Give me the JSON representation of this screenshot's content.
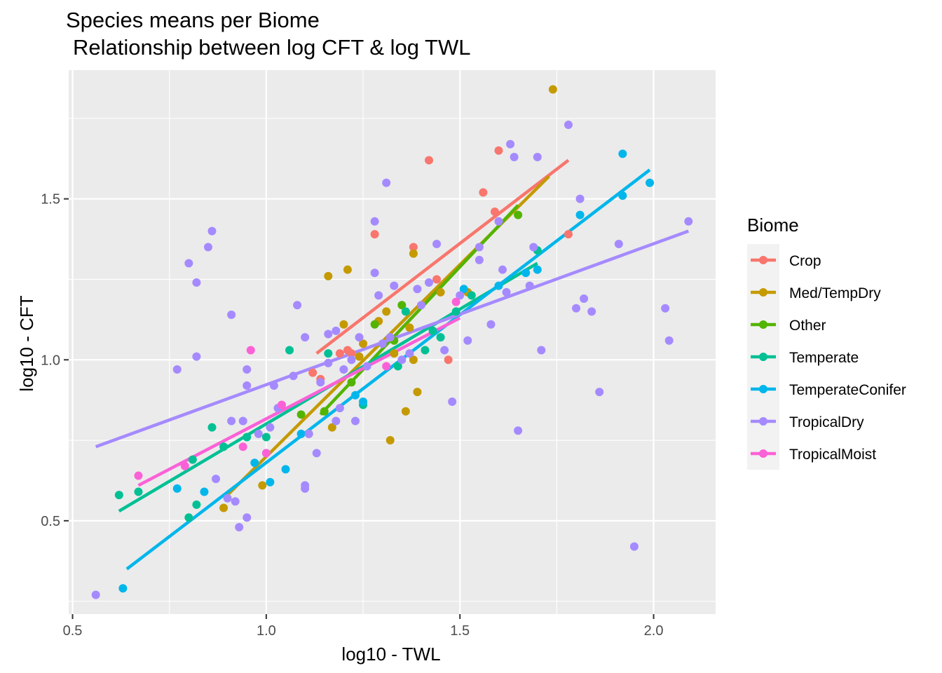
{
  "chart_data": {
    "type": "scatter",
    "title": "Species means per Biome",
    "subtitle": "Relationship between log CFT & log TWL",
    "xlabel": "log10 - TWL",
    "ylabel": "log10 - CFT",
    "xlim": [
      0.49,
      2.16
    ],
    "ylim": [
      0.21,
      1.9
    ],
    "x_ticks": [
      {
        "value": 0.5,
        "label": "0.5"
      },
      {
        "value": 1.0,
        "label": "1.0"
      },
      {
        "value": 1.5,
        "label": "1.5"
      },
      {
        "value": 2.0,
        "label": "2.0"
      }
    ],
    "y_ticks": [
      {
        "value": 0.5,
        "label": "0.5"
      },
      {
        "value": 1.0,
        "label": "1.0"
      },
      {
        "value": 1.5,
        "label": "1.5"
      }
    ],
    "grid": true,
    "legend": {
      "title": "Biome",
      "position": "right"
    },
    "series": [
      {
        "name": "Crop",
        "color": "#F8766D",
        "trend": [
          [
            1.13,
            1.02
          ],
          [
            1.78,
            1.62
          ]
        ],
        "points": [
          [
            1.12,
            0.96
          ],
          [
            1.14,
            0.94
          ],
          [
            1.19,
            1.02
          ],
          [
            1.21,
            1.03
          ],
          [
            1.22,
            1.02
          ],
          [
            1.28,
            1.39
          ],
          [
            1.38,
            1.35
          ],
          [
            1.42,
            1.62
          ],
          [
            1.44,
            1.25
          ],
          [
            1.47,
            1.0
          ],
          [
            1.56,
            1.52
          ],
          [
            1.59,
            1.46
          ],
          [
            1.6,
            1.65
          ],
          [
            1.78,
            1.39
          ]
        ]
      },
      {
        "name": "Med/TempDry",
        "color": "#C49A00",
        "trend": [
          [
            0.9,
            0.58
          ],
          [
            1.73,
            1.57
          ]
        ],
        "points": [
          [
            0.89,
            0.54
          ],
          [
            0.99,
            0.61
          ],
          [
            1.11,
            0.77
          ],
          [
            1.17,
            0.79
          ],
          [
            1.16,
            1.26
          ],
          [
            1.2,
            1.11
          ],
          [
            1.21,
            1.28
          ],
          [
            1.24,
            1.01
          ],
          [
            1.25,
            1.05
          ],
          [
            1.29,
            1.12
          ],
          [
            1.31,
            1.15
          ],
          [
            1.32,
            0.75
          ],
          [
            1.33,
            1.02
          ],
          [
            1.36,
            0.84
          ],
          [
            1.37,
            1.1
          ],
          [
            1.38,
            1.0
          ],
          [
            1.38,
            1.33
          ],
          [
            1.39,
            0.9
          ],
          [
            1.45,
            1.21
          ],
          [
            1.52,
            1.21
          ],
          [
            1.74,
            1.84
          ]
        ]
      },
      {
        "name": "Other",
        "color": "#53B400",
        "trend": [
          [
            1.14,
            0.83
          ],
          [
            1.65,
            1.48
          ]
        ],
        "points": [
          [
            1.09,
            0.83
          ],
          [
            1.15,
            0.84
          ],
          [
            1.22,
            0.93
          ],
          [
            1.28,
            1.11
          ],
          [
            1.33,
            1.06
          ],
          [
            1.35,
            1.17
          ],
          [
            1.65,
            1.45
          ]
        ]
      },
      {
        "name": "Temperate",
        "color": "#00C094",
        "trend": [
          [
            0.62,
            0.53
          ],
          [
            1.7,
            1.3
          ]
        ],
        "points": [
          [
            0.62,
            0.58
          ],
          [
            0.67,
            0.59
          ],
          [
            0.8,
            0.51
          ],
          [
            0.81,
            0.69
          ],
          [
            0.82,
            0.55
          ],
          [
            0.86,
            0.79
          ],
          [
            0.89,
            0.73
          ],
          [
            0.95,
            0.76
          ],
          [
            1.0,
            0.76
          ],
          [
            1.06,
            1.03
          ],
          [
            1.16,
            1.02
          ],
          [
            1.25,
            0.86
          ],
          [
            1.34,
            0.98
          ],
          [
            1.36,
            1.15
          ],
          [
            1.41,
            1.03
          ],
          [
            1.43,
            1.09
          ],
          [
            1.45,
            1.07
          ],
          [
            1.49,
            1.15
          ],
          [
            1.53,
            1.2
          ],
          [
            1.7,
            1.34
          ]
        ]
      },
      {
        "name": "TemperateConifer",
        "color": "#00B6EB",
        "trend": [
          [
            0.64,
            0.35
          ],
          [
            1.99,
            1.59
          ]
        ],
        "points": [
          [
            0.63,
            0.29
          ],
          [
            0.77,
            0.6
          ],
          [
            0.84,
            0.59
          ],
          [
            0.97,
            0.68
          ],
          [
            1.01,
            0.62
          ],
          [
            1.05,
            0.66
          ],
          [
            1.09,
            0.77
          ],
          [
            1.23,
            0.89
          ],
          [
            1.25,
            0.87
          ],
          [
            1.51,
            1.22
          ],
          [
            1.6,
            1.23
          ],
          [
            1.67,
            1.27
          ],
          [
            1.7,
            1.28
          ],
          [
            1.81,
            1.45
          ],
          [
            1.92,
            1.51
          ],
          [
            1.92,
            1.64
          ],
          [
            1.99,
            1.55
          ]
        ]
      },
      {
        "name": "TropicalDry",
        "color": "#A58AFF",
        "trend": [
          [
            0.56,
            0.73
          ],
          [
            2.09,
            1.4
          ]
        ],
        "points": [
          [
            0.56,
            0.27
          ],
          [
            0.77,
            0.97
          ],
          [
            0.8,
            1.3
          ],
          [
            0.82,
            1.24
          ],
          [
            0.82,
            1.01
          ],
          [
            0.85,
            1.35
          ],
          [
            0.86,
            1.4
          ],
          [
            0.87,
            0.63
          ],
          [
            0.9,
            0.57
          ],
          [
            0.91,
            1.14
          ],
          [
            0.91,
            0.81
          ],
          [
            0.92,
            0.56
          ],
          [
            0.93,
            0.48
          ],
          [
            0.94,
            0.81
          ],
          [
            0.95,
            0.51
          ],
          [
            0.95,
            0.97
          ],
          [
            0.95,
            0.92
          ],
          [
            0.98,
            0.77
          ],
          [
            1.0,
            0.71
          ],
          [
            1.01,
            0.79
          ],
          [
            1.02,
            0.92
          ],
          [
            1.03,
            0.85
          ],
          [
            1.07,
            0.95
          ],
          [
            1.08,
            1.17
          ],
          [
            1.1,
            1.07
          ],
          [
            1.1,
            0.6
          ],
          [
            1.1,
            0.61
          ],
          [
            1.11,
            0.77
          ],
          [
            1.13,
            0.71
          ],
          [
            1.14,
            0.93
          ],
          [
            1.16,
            1.08
          ],
          [
            1.16,
            0.99
          ],
          [
            1.18,
            1.09
          ],
          [
            1.18,
            0.81
          ],
          [
            1.19,
            0.85
          ],
          [
            1.2,
            0.97
          ],
          [
            1.22,
            1.0
          ],
          [
            1.23,
            0.81
          ],
          [
            1.24,
            1.07
          ],
          [
            1.26,
            0.98
          ],
          [
            1.28,
            1.27
          ],
          [
            1.28,
            1.43
          ],
          [
            1.29,
            1.2
          ],
          [
            1.3,
            1.05
          ],
          [
            1.31,
            1.55
          ],
          [
            1.32,
            1.07
          ],
          [
            1.33,
            1.23
          ],
          [
            1.35,
            1.0
          ],
          [
            1.37,
            1.02
          ],
          [
            1.39,
            1.22
          ],
          [
            1.4,
            1.17
          ],
          [
            1.42,
            1.24
          ],
          [
            1.44,
            1.36
          ],
          [
            1.46,
            1.03
          ],
          [
            1.48,
            0.87
          ],
          [
            1.5,
            1.2
          ],
          [
            1.52,
            1.06
          ],
          [
            1.55,
            1.35
          ],
          [
            1.55,
            1.31
          ],
          [
            1.58,
            1.11
          ],
          [
            1.6,
            1.43
          ],
          [
            1.61,
            1.28
          ],
          [
            1.62,
            1.21
          ],
          [
            1.63,
            1.67
          ],
          [
            1.64,
            1.63
          ],
          [
            1.65,
            0.78
          ],
          [
            1.68,
            1.23
          ],
          [
            1.69,
            1.35
          ],
          [
            1.7,
            1.63
          ],
          [
            1.71,
            1.03
          ],
          [
            1.78,
            1.73
          ],
          [
            1.8,
            1.16
          ],
          [
            1.81,
            1.5
          ],
          [
            1.82,
            1.19
          ],
          [
            1.84,
            1.15
          ],
          [
            1.86,
            0.9
          ],
          [
            1.91,
            1.36
          ],
          [
            1.95,
            0.42
          ],
          [
            2.03,
            1.16
          ],
          [
            2.04,
            1.06
          ],
          [
            2.09,
            1.43
          ]
        ]
      },
      {
        "name": "TropicalMoist",
        "color": "#FB61D7",
        "trend": [
          [
            0.67,
            0.61
          ],
          [
            1.5,
            1.13
          ]
        ],
        "points": [
          [
            0.67,
            0.64
          ],
          [
            0.79,
            0.67
          ],
          [
            0.94,
            0.73
          ],
          [
            0.96,
            1.03
          ],
          [
            1.0,
            0.71
          ],
          [
            1.04,
            0.86
          ],
          [
            1.31,
            0.98
          ],
          [
            1.49,
            1.18
          ]
        ]
      }
    ]
  }
}
